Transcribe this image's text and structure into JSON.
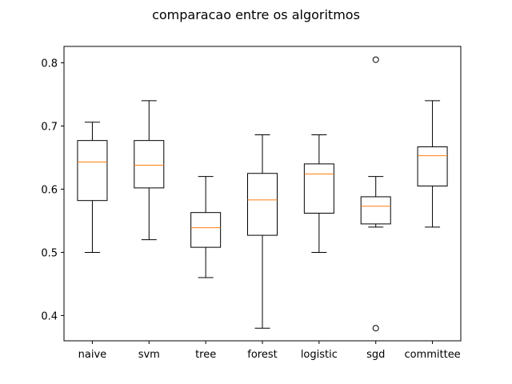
{
  "chart_data": {
    "type": "box",
    "title": "comparacao entre os algoritmos",
    "xlabel": "",
    "ylabel": "",
    "ylim": [
      0.36,
      0.826
    ],
    "yticks": [
      0.4,
      0.5,
      0.6,
      0.7,
      0.8
    ],
    "ytick_labels": [
      "0.4",
      "0.5",
      "0.6",
      "0.7",
      "0.8"
    ],
    "grid": false,
    "colors": {
      "box": "#000000",
      "median": "#ff7f0e",
      "flier": "#000000"
    },
    "categories": [
      "naive",
      "svm",
      "tree",
      "forest",
      "logistic",
      "sgd",
      "committee"
    ],
    "boxes": [
      {
        "name": "naive",
        "whislo": 0.5,
        "q1": 0.582,
        "med": 0.643,
        "q3": 0.677,
        "whishi": 0.706,
        "fliers": []
      },
      {
        "name": "svm",
        "whislo": 0.52,
        "q1": 0.602,
        "med": 0.638,
        "q3": 0.677,
        "whishi": 0.74,
        "fliers": []
      },
      {
        "name": "tree",
        "whislo": 0.46,
        "q1": 0.508,
        "med": 0.539,
        "q3": 0.563,
        "whishi": 0.62,
        "fliers": []
      },
      {
        "name": "forest",
        "whislo": 0.38,
        "q1": 0.527,
        "med": 0.583,
        "q3": 0.625,
        "whishi": 0.686,
        "fliers": []
      },
      {
        "name": "logistic",
        "whislo": 0.5,
        "q1": 0.562,
        "med": 0.624,
        "q3": 0.64,
        "whishi": 0.686,
        "fliers": []
      },
      {
        "name": "sgd",
        "whislo": 0.54,
        "q1": 0.545,
        "med": 0.573,
        "q3": 0.588,
        "whishi": 0.62,
        "fliers": [
          0.805,
          0.38
        ]
      },
      {
        "name": "committee",
        "whislo": 0.54,
        "q1": 0.605,
        "med": 0.653,
        "q3": 0.667,
        "whishi": 0.74,
        "fliers": []
      }
    ]
  }
}
